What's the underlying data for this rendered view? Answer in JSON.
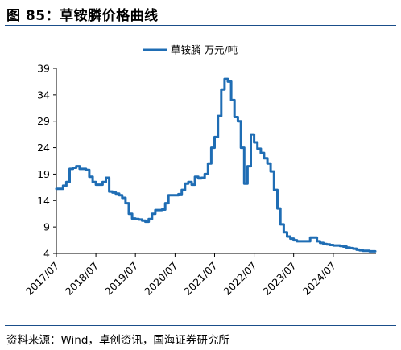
{
  "figure_title": "图 85：草铵膦价格曲线",
  "source_text": "资料来源：Wind，卓创资讯，国海证券研究所",
  "chart_data": {
    "type": "line",
    "title": "",
    "xlabel": "",
    "ylabel": "",
    "ylim": [
      4,
      39
    ],
    "yticks": [
      4,
      9,
      14,
      19,
      24,
      29,
      34,
      39
    ],
    "xlim": [
      "2017-07-01",
      "2025-07-31"
    ],
    "xticks": [
      "2017/07",
      "2018/07",
      "2019/07",
      "2020/07",
      "2021/07",
      "2022/07",
      "2023/07",
      "2024/07"
    ],
    "legend_position": "top-center",
    "grid": false,
    "color": "#1f6db4",
    "series": [
      {
        "name": "草铵膦 万元/吨",
        "points": [
          [
            "2017-07-01",
            16.2
          ],
          [
            "2017-08-01",
            16.2
          ],
          [
            "2017-09-01",
            16.8
          ],
          [
            "2017-10-01",
            17.5
          ],
          [
            "2017-11-01",
            20.0
          ],
          [
            "2017-12-01",
            20.2
          ],
          [
            "2018-01-01",
            20.5
          ],
          [
            "2018-02-01",
            20.0
          ],
          [
            "2018-03-01",
            20.0
          ],
          [
            "2018-04-01",
            19.8
          ],
          [
            "2018-05-01",
            18.5
          ],
          [
            "2018-06-01",
            17.5
          ],
          [
            "2018-07-01",
            17.0
          ],
          [
            "2018-08-01",
            17.0
          ],
          [
            "2018-09-01",
            17.5
          ],
          [
            "2018-10-01",
            18.3
          ],
          [
            "2018-11-01",
            15.7
          ],
          [
            "2018-12-01",
            15.5
          ],
          [
            "2019-01-01",
            15.3
          ],
          [
            "2019-02-01",
            15.0
          ],
          [
            "2019-03-01",
            14.5
          ],
          [
            "2019-04-01",
            13.5
          ],
          [
            "2019-05-01",
            11.5
          ],
          [
            "2019-06-01",
            10.6
          ],
          [
            "2019-07-01",
            10.5
          ],
          [
            "2019-08-01",
            10.4
          ],
          [
            "2019-09-01",
            10.2
          ],
          [
            "2019-10-01",
            10.0
          ],
          [
            "2019-11-01",
            10.5
          ],
          [
            "2019-12-01",
            11.5
          ],
          [
            "2020-01-01",
            12.2
          ],
          [
            "2020-02-01",
            12.2
          ],
          [
            "2020-03-01",
            12.3
          ],
          [
            "2020-04-01",
            13.5
          ],
          [
            "2020-05-01",
            15.0
          ],
          [
            "2020-06-01",
            15.0
          ],
          [
            "2020-07-01",
            15.0
          ],
          [
            "2020-08-01",
            15.2
          ],
          [
            "2020-09-01",
            16.0
          ],
          [
            "2020-10-01",
            17.2
          ],
          [
            "2020-11-01",
            17.5
          ],
          [
            "2020-12-01",
            17.0
          ],
          [
            "2021-01-01",
            18.5
          ],
          [
            "2021-02-01",
            18.2
          ],
          [
            "2021-03-01",
            18.3
          ],
          [
            "2021-04-01",
            19.0
          ],
          [
            "2021-05-01",
            21.0
          ],
          [
            "2021-06-01",
            24.0
          ],
          [
            "2021-07-01",
            26.0
          ],
          [
            "2021-08-01",
            30.0
          ],
          [
            "2021-09-01",
            35.0
          ],
          [
            "2021-10-01",
            37.0
          ],
          [
            "2021-11-01",
            36.5
          ],
          [
            "2021-12-01",
            33.0
          ],
          [
            "2022-01-01",
            29.8
          ],
          [
            "2022-02-01",
            29.0
          ],
          [
            "2022-03-01",
            24.0
          ],
          [
            "2022-04-01",
            17.2
          ],
          [
            "2022-05-01",
            20.5
          ],
          [
            "2022-06-01",
            26.5
          ],
          [
            "2022-07-01",
            25.0
          ],
          [
            "2022-08-01",
            23.8
          ],
          [
            "2022-09-01",
            23.0
          ],
          [
            "2022-10-01",
            22.0
          ],
          [
            "2022-11-01",
            21.0
          ],
          [
            "2022-12-01",
            19.5
          ],
          [
            "2023-01-01",
            16.0
          ],
          [
            "2023-02-01",
            12.5
          ],
          [
            "2023-03-01",
            9.5
          ],
          [
            "2023-04-01",
            8.0
          ],
          [
            "2023-05-01",
            7.2
          ],
          [
            "2023-06-01",
            6.8
          ],
          [
            "2023-07-01",
            6.5
          ],
          [
            "2023-08-01",
            6.3
          ],
          [
            "2023-09-01",
            6.3
          ],
          [
            "2023-10-01",
            6.3
          ],
          [
            "2023-11-01",
            6.3
          ],
          [
            "2023-12-01",
            7.0
          ],
          [
            "2024-01-01",
            7.0
          ],
          [
            "2024-02-01",
            6.3
          ],
          [
            "2024-03-01",
            6.0
          ],
          [
            "2024-04-01",
            5.8
          ],
          [
            "2024-05-01",
            5.7
          ],
          [
            "2024-06-01",
            5.6
          ],
          [
            "2024-07-01",
            5.5
          ],
          [
            "2024-08-01",
            5.5
          ],
          [
            "2024-09-01",
            5.4
          ],
          [
            "2024-10-01",
            5.3
          ],
          [
            "2024-11-01",
            5.1
          ],
          [
            "2024-12-01",
            5.0
          ],
          [
            "2025-01-01",
            4.9
          ],
          [
            "2025-02-01",
            4.7
          ],
          [
            "2025-03-01",
            4.6
          ],
          [
            "2025-04-01",
            4.5
          ],
          [
            "2025-05-01",
            4.5
          ],
          [
            "2025-06-01",
            4.4
          ],
          [
            "2025-07-01",
            4.4
          ]
        ]
      }
    ]
  }
}
